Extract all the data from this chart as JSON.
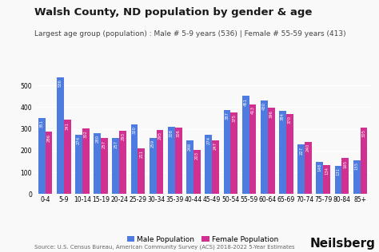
{
  "title": "Walsh County, ND population by gender & age",
  "subtitle": "Largest age group (population) : Male # 5-9 years (536) | Female # 55-59 years (413)",
  "categories": [
    "0-4",
    "5-9",
    "10-14",
    "15-19",
    "20-24",
    "25-29",
    "30-34",
    "35-39",
    "40-44",
    "45-49",
    "50-54",
    "55-59",
    "60-64",
    "65-69",
    "70-74",
    "75-79",
    "80-84",
    "85+"
  ],
  "male": [
    351,
    536,
    274,
    280,
    257,
    320,
    259,
    308,
    246,
    274,
    387,
    451,
    430,
    384,
    227,
    148,
    131,
    155
  ],
  "female": [
    286,
    341,
    302,
    257,
    293,
    211,
    295,
    306,
    203,
    247,
    375,
    413,
    396,
    370,
    240,
    134,
    165,
    305
  ],
  "male_color": "#4e7be0",
  "female_color": "#d03090",
  "background_color": "#f9f9f9",
  "bar_value_color": "white",
  "ylim": [
    0,
    580
  ],
  "yticks": [
    0,
    100,
    200,
    300,
    400,
    500
  ],
  "legend_male": "Male Population",
  "legend_female": "Female Population",
  "source_text": "Source: U.S. Census Bureau, American Community Survey (ACS) 2018-2022 5-Year Estimates",
  "brand_text": "Neilsberg",
  "title_fontsize": 9.5,
  "subtitle_fontsize": 6.5,
  "bar_label_fontsize": 3.8,
  "tick_fontsize": 5.5,
  "legend_fontsize": 6.5,
  "source_fontsize": 5.0,
  "brand_fontsize": 11
}
